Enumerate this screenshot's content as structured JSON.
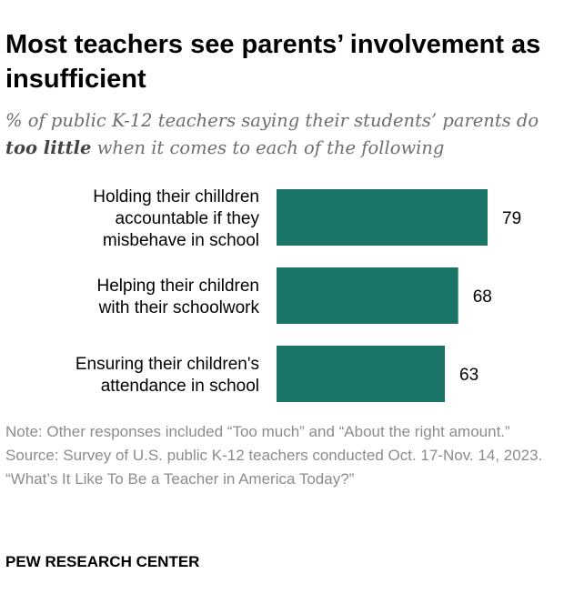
{
  "header": {
    "title": "Most teachers see parents’ involvement as insufficient",
    "subtitle_pre": "% of public K-12 teachers saying their students’ parents do ",
    "subtitle_emph": "too little",
    "subtitle_post": " when it comes to each of the following"
  },
  "chart_data": {
    "type": "bar",
    "orientation": "horizontal",
    "categories": [
      [
        "Holding their chilldren",
        "accountable if they",
        "misbehave in school"
      ],
      [
        "Helping their children",
        "with their schoolwork"
      ],
      [
        "Ensuring their children's",
        "attendance in school"
      ]
    ],
    "values": [
      79,
      68,
      63
    ],
    "xlim": [
      0,
      100
    ],
    "bar_color": "#1a7566",
    "grid": false,
    "legend": "none"
  },
  "footer": {
    "note": "Note: Other responses included “Too much” and “About the right amount.”",
    "source": "Source: Survey of U.S. public K-12 teachers conducted Oct. 17-Nov. 14, 2023.",
    "report": "“What’s It Like To Be a Teacher in America Today?”",
    "brand": "PEW RESEARCH CENTER"
  }
}
